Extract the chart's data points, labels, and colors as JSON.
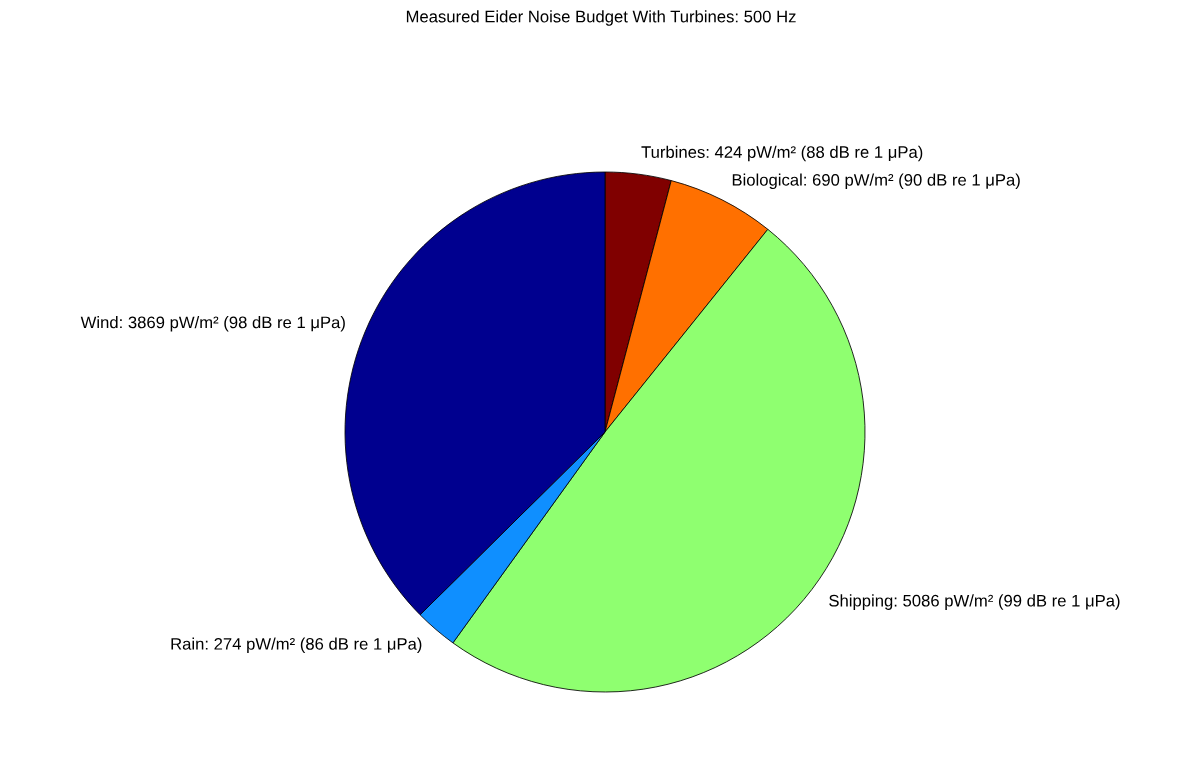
{
  "chart_data": {
    "type": "pie",
    "title": "Measured Eider Noise Budget With Turbines: 500 Hz",
    "categories": [
      "Turbines: 424 pW/m² (88 dB re 1 μPa)",
      "Biological: 690 pW/m² (90 dB re 1 μPa)",
      "Shipping: 5086 pW/m² (99 dB re 1 μPa)",
      "Rain: 274 pW/m² (86 dB re 1 μPa)",
      "Wind: 3869 pW/m² (98 dB re 1 μPa)"
    ],
    "values": [
      424,
      690,
      5086,
      274,
      3869
    ],
    "colors": [
      "#800000",
      "#ff7000",
      "#8fff70",
      "#0f8fff",
      "#00008f"
    ]
  }
}
